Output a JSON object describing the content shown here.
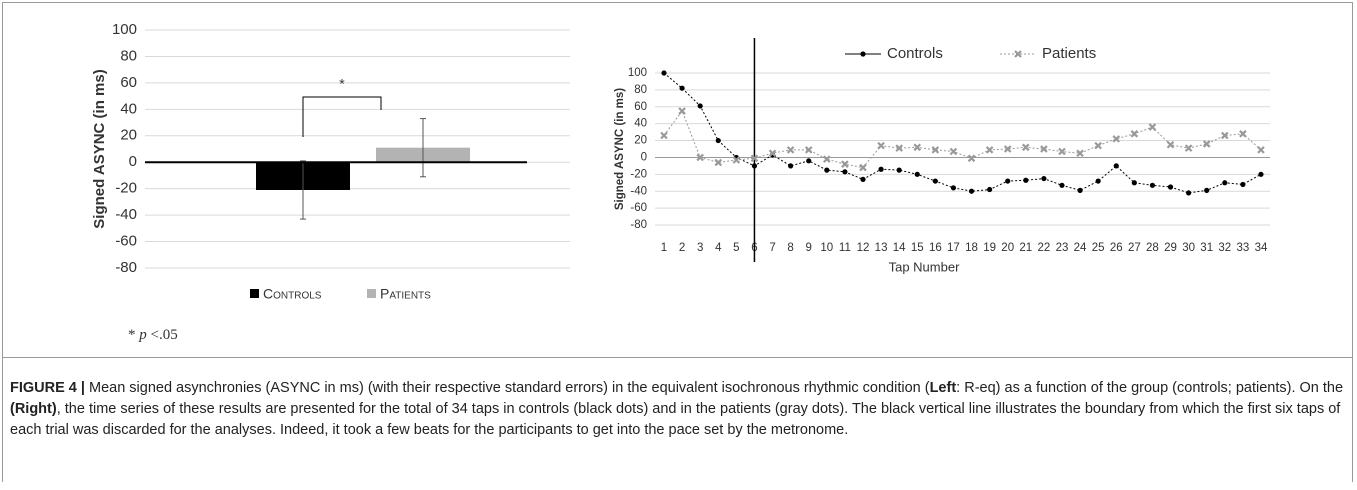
{
  "chart_data": [
    {
      "type": "bar",
      "y_label": "Signed ASYNC (in ms)",
      "series": [
        {
          "name": "Controls",
          "color": "#000000",
          "values": [
            -21
          ],
          "errors": [
            22
          ]
        },
        {
          "name": "Patients",
          "color": "#b3b3b3",
          "values": [
            11
          ],
          "errors": [
            22
          ]
        }
      ],
      "annotation": "*",
      "ylim": [
        -80,
        100
      ],
      "yticks": [
        -80,
        -60,
        -40,
        -20,
        0,
        20,
        40,
        60,
        80,
        100
      ],
      "grid": true,
      "footnote": [
        "* ",
        "p",
        " <.05"
      ]
    },
    {
      "type": "line",
      "y_label": "Signed ASYNC (in ms)",
      "x_label": "Tap Number",
      "categories": [
        "1",
        "2",
        "3",
        "4",
        "5",
        "6",
        "7",
        "8",
        "9",
        "10",
        "11",
        "12",
        "13",
        "14",
        "15",
        "16",
        "17",
        "18",
        "19",
        "20",
        "21",
        "22",
        "23",
        "24",
        "25",
        "26",
        "27",
        "28",
        "29",
        "30",
        "31",
        "32",
        "33",
        "34"
      ],
      "series": [
        {
          "name": "Controls",
          "color": "#000000",
          "marker": "circle",
          "values": [
            100,
            82,
            61,
            20,
            0,
            -10,
            3,
            -10,
            -4,
            -15,
            -17,
            -26,
            -14,
            -15,
            -20,
            -28,
            -36,
            -40,
            -38,
            -28,
            -27,
            -25,
            -33,
            -39,
            -28,
            -10,
            -30,
            -33,
            -35,
            -42,
            -39,
            -30,
            -32,
            -20
          ]
        },
        {
          "name": "Patients",
          "color": "#999999",
          "marker": "x",
          "values": [
            26,
            55,
            0,
            -6,
            -3,
            -1,
            5,
            9,
            9,
            -2,
            -8,
            -12,
            14,
            11,
            12,
            9,
            7,
            -1,
            9,
            10,
            12,
            10,
            7,
            5,
            14,
            22,
            28,
            36,
            15,
            11,
            16,
            26,
            28,
            9
          ]
        }
      ],
      "boundary": "6",
      "ylim": [
        -80,
        100
      ],
      "yticks": [
        -80,
        -60,
        -40,
        -20,
        0,
        20,
        40,
        60,
        80,
        100
      ],
      "grid": true
    }
  ],
  "caption": {
    "label": "FIGURE 4 |",
    "parts": [
      "Mean signed asynchronies (ASYNC in ms) (with their respective standard errors) in the equivalent isochronous rhythmic condition (",
      "Left",
      ": R-eq) as a function of the group (controls; patients). On the ",
      "(Right)",
      ", the time series of these results are presented for the total of 34 taps in controls (black dots) and in the patients (gray dots). The black vertical line illustrates the boundary from which the first six taps of each trial was discarded for the analyses. Indeed, it took a few beats for the participants to get into the pace set by the metronome."
    ]
  }
}
